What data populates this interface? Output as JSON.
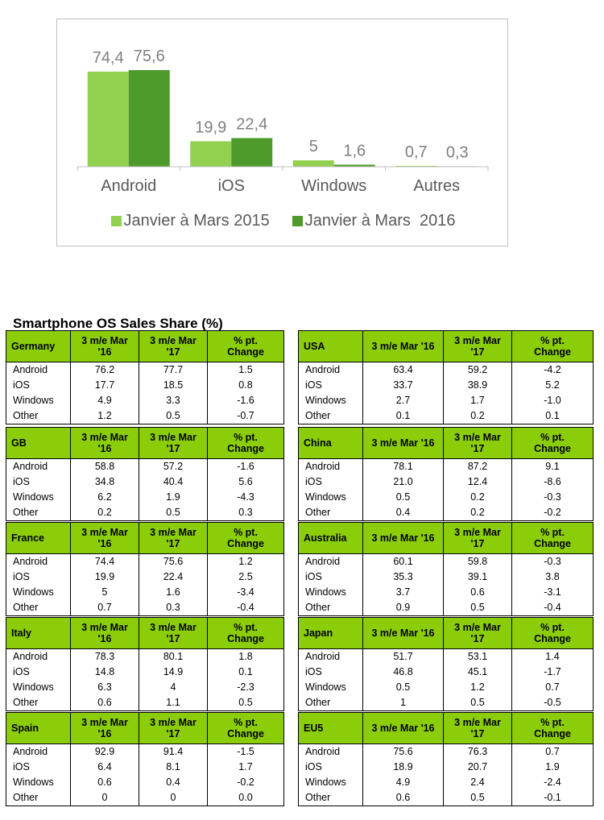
{
  "chart_data": {
    "type": "bar",
    "categories": [
      "Android",
      "iOS",
      "Windows",
      "Autres"
    ],
    "series": [
      {
        "name": "Janvier à Mars 2015",
        "values": [
          74.4,
          19.9,
          5,
          0.7
        ],
        "labels": [
          "74,4",
          "19,9",
          "5",
          "0,7"
        ],
        "color": "#92d050"
      },
      {
        "name": "Janvier à Mars  2016",
        "values": [
          75.6,
          22.4,
          1.6,
          0.3
        ],
        "labels": [
          "75,6",
          "22,4",
          "1,6",
          "0,3"
        ],
        "color": "#4e9a2c"
      }
    ],
    "ylim": [
      0,
      75.6
    ],
    "grid": false,
    "legend": "bottom"
  },
  "table": {
    "title": "Smartphone OS Sales Share (%)",
    "countries": [
      {
        "name": "Germany",
        "h1": "3 m/e Mar\n'16",
        "h2": "3 m/e Mar\n'17",
        "h3": "% pt.\nChange",
        "rows": [
          [
            "Android",
            "76.2",
            "77.7",
            "1.5"
          ],
          [
            "iOS",
            "17.7",
            "18.5",
            "0.8"
          ],
          [
            "Windows",
            "4.9",
            "3.3",
            "-1.6"
          ],
          [
            "Other",
            "1.2",
            "0.5",
            "-0.7"
          ]
        ]
      },
      {
        "name": "USA",
        "h1": "3 m/e Mar '16",
        "h2": "3 m/e Mar\n'17",
        "h3": "% pt.\nChange",
        "rows": [
          [
            "Android",
            "63.4",
            "59.2",
            "-4.2"
          ],
          [
            "iOS",
            "33.7",
            "38.9",
            "5.2"
          ],
          [
            "Windows",
            "2.7",
            "1.7",
            "-1.0"
          ],
          [
            "Other",
            "0.1",
            "0.2",
            "0.1"
          ]
        ]
      },
      {
        "name": "GB",
        "h1": "3 m/e Mar\n'16",
        "h2": "3 m/e Mar\n'17",
        "h3": "% pt.\nChange",
        "rows": [
          [
            "Android",
            "58.8",
            "57.2",
            "-1.6"
          ],
          [
            "iOS",
            "34.8",
            "40.4",
            "5.6"
          ],
          [
            "Windows",
            "6.2",
            "1.9",
            "-4.3"
          ],
          [
            "Other",
            "0.2",
            "0.5",
            "0.3"
          ]
        ]
      },
      {
        "name": "China",
        "h1": "3 m/e Mar '16",
        "h2": "3 m/e Mar\n'17",
        "h3": "% pt.\nChange",
        "rows": [
          [
            "Android",
            "78.1",
            "87.2",
            "9.1"
          ],
          [
            "iOS",
            "21.0",
            "12.4",
            "-8.6"
          ],
          [
            "Windows",
            "0.5",
            "0.2",
            "-0.3"
          ],
          [
            "Other",
            "0.4",
            "0.2",
            "-0.2"
          ]
        ]
      },
      {
        "name": "France",
        "h1": "3 m/e Mar\n'16",
        "h2": "3 m/e Mar\n'17",
        "h3": "% pt.\nChange",
        "rows": [
          [
            "Android",
            "74.4",
            "75.6",
            "1.2"
          ],
          [
            "iOS",
            "19.9",
            "22.4",
            "2.5"
          ],
          [
            "Windows",
            "5",
            "1.6",
            "-3.4"
          ],
          [
            "Other",
            "0.7",
            "0.3",
            "-0.4"
          ]
        ]
      },
      {
        "name": "Australia",
        "h1": "3 m/e Mar '16",
        "h2": "3 m/e Mar\n'17",
        "h3": "% pt.\nChange",
        "rows": [
          [
            "Android",
            "60.1",
            "59.8",
            "-0.3"
          ],
          [
            "iOS",
            "35.3",
            "39.1",
            "3.8"
          ],
          [
            "Windows",
            "3.7",
            "0.6",
            "-3.1"
          ],
          [
            "Other",
            "0.9",
            "0.5",
            "-0.4"
          ]
        ]
      },
      {
        "name": "Italy",
        "h1": "3 m/e Mar\n'16",
        "h2": "3 m/e Mar\n'17",
        "h3": "% pt.\nChange",
        "rows": [
          [
            "Android",
            "78.3",
            "80.1",
            "1.8"
          ],
          [
            "iOS",
            "14.8",
            "14.9",
            "0.1"
          ],
          [
            "Windows",
            "6.3",
            "4",
            "-2.3"
          ],
          [
            "Other",
            "0.6",
            "1.1",
            "0.5"
          ]
        ]
      },
      {
        "name": "Japan",
        "h1": "3 m/e Mar '16",
        "h2": "3 m/e Mar\n'17",
        "h3": "% pt.\nChange",
        "rows": [
          [
            "Android",
            "51.7",
            "53.1",
            "1.4"
          ],
          [
            "iOS",
            "46.8",
            "45.1",
            "-1.7"
          ],
          [
            "Windows",
            "0.5",
            "1.2",
            "0.7"
          ],
          [
            "Other",
            "1",
            "0.5",
            "-0.5"
          ]
        ]
      },
      {
        "name": "Spain",
        "h1": "3 m/e Mar\n'16",
        "h2": "3 m/e Mar\n'17",
        "h3": "% pt.\nChange",
        "rows": [
          [
            "Android",
            "92.9",
            "91.4",
            "-1.5"
          ],
          [
            "iOS",
            "6.4",
            "8.1",
            "1.7"
          ],
          [
            "Windows",
            "0.6",
            "0.4",
            "-0.2"
          ],
          [
            "Other",
            "0",
            "0",
            "0.0"
          ]
        ]
      },
      {
        "name": "EU5",
        "h1": "3 m/e Mar '16",
        "h2": "3 m/e Mar\n'17",
        "h3": "% pt.\nChange",
        "rows": [
          [
            "Android",
            "75.6",
            "76.3",
            "0.7"
          ],
          [
            "iOS",
            "18.9",
            "20.7",
            "1.9"
          ],
          [
            "Windows",
            "4.9",
            "2.4",
            "-2.4"
          ],
          [
            "Other",
            "0.6",
            "0.5",
            "-0.1"
          ]
        ]
      }
    ]
  }
}
